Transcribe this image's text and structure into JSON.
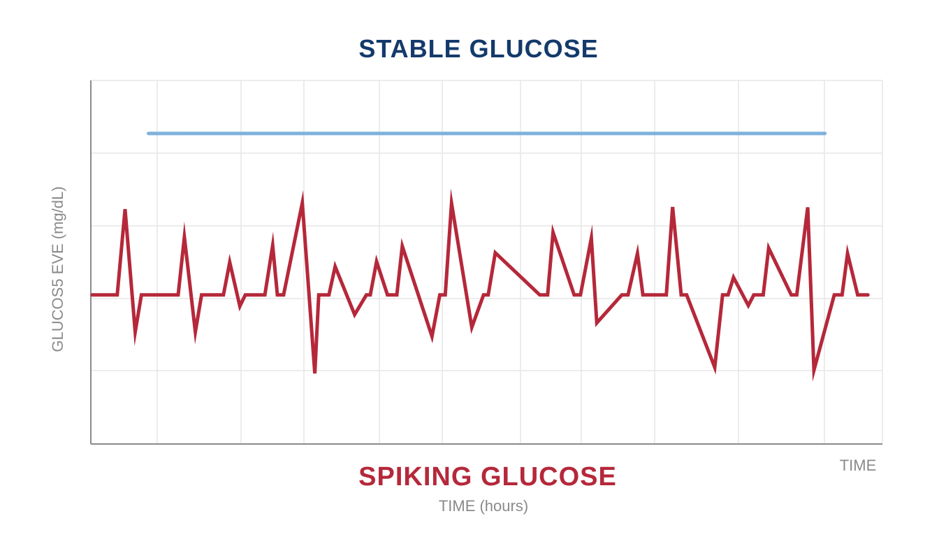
{
  "chart_data": {
    "type": "line",
    "top_title": "STABLE GLUCOSE",
    "bottom_title": "SPIKING GLUCOSE",
    "xlabel": "TIME (hours)",
    "xlabel_end": "TIME",
    "ylabel": "GLUCOS5 EVE (mg/dL)",
    "grid": true,
    "x_range": [
      0,
      100
    ],
    "y_range": [
      0,
      100
    ],
    "colors": {
      "stable": "#7fb2dd",
      "spiking": "#b5283a",
      "top_title": "#143a6b",
      "bottom_title": "#b5283a",
      "axis_text": "#8a8a8a",
      "grid": "#e6e6e6",
      "axis": "#8a8a8a"
    },
    "series": [
      {
        "id": "stable",
        "x": [
          7.2,
          93.8
        ],
        "y": [
          85.4,
          85.4
        ]
      },
      {
        "id": "spiking",
        "x": [
          0,
          3.2,
          4.2,
          5.5,
          6.3,
          11.0,
          11.8,
          13.2,
          14.0,
          16.8,
          17.6,
          18.9,
          19.6,
          22.1,
          23.1,
          23.7,
          24.5,
          26.9,
          28.5,
          29.0,
          30.3,
          31.1,
          33.6,
          35.1,
          35.6,
          36.4,
          37.8,
          39.0,
          39.7,
          43.5,
          44.5,
          45.2,
          46.0,
          48.6,
          50.1,
          50.7,
          51.6,
          57.3,
          58.3,
          59.0,
          61.7,
          62.5,
          63.9,
          64.6,
          67.8,
          68.6,
          69.8,
          70.5,
          73.5,
          74.3,
          75.4,
          76.1,
          79.7,
          80.7,
          81.4,
          82.1,
          84.0,
          84.7,
          85.9,
          86.6,
          89.5,
          90.2,
          91.6,
          92.4,
          95.0,
          96.0,
          96.7,
          98.0,
          99.3
        ],
        "y": [
          41.0,
          41.0,
          64.6,
          30.8,
          41.0,
          41.0,
          56.9,
          30.8,
          41.0,
          41.0,
          50.0,
          37.9,
          41.0,
          41.0,
          54.6,
          41.0,
          41.0,
          66.3,
          19.4,
          41.0,
          41.0,
          48.8,
          35.6,
          41.0,
          41.0,
          50.2,
          41.0,
          41.0,
          54.4,
          29.6,
          41.0,
          41.0,
          66.2,
          32.1,
          41.0,
          41.0,
          52.6,
          41.0,
          41.0,
          58.2,
          41.0,
          41.0,
          56.6,
          33.3,
          41.0,
          41.0,
          52.4,
          41.0,
          41.0,
          65.2,
          41.0,
          41.0,
          21.1,
          41.0,
          41.0,
          45.8,
          38.1,
          41.0,
          41.0,
          53.9,
          41.0,
          41.0,
          65.1,
          20.3,
          41.0,
          41.0,
          52.4,
          41.0,
          41.0
        ]
      }
    ]
  }
}
